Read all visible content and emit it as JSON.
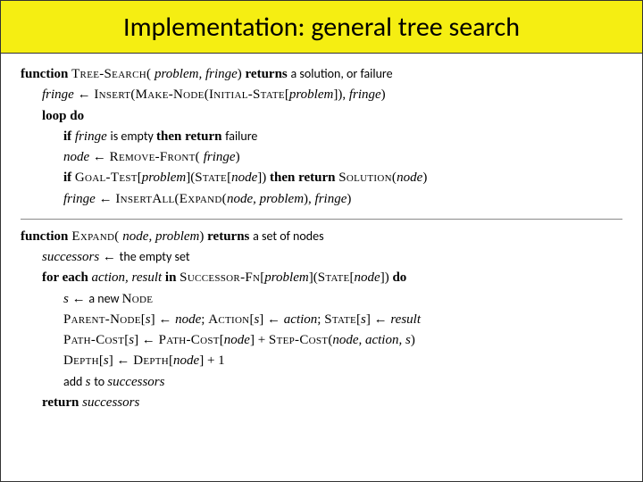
{
  "title": "Implementation: general tree search",
  "algo1": {
    "l1_kw_function": "function",
    "l1_name": "Tree-Search(",
    "l1_args": " problem, fringe",
    "l1_paren": ") ",
    "l1_kw_returns": "returns ",
    "l1_ret": "a solution, ",
    "l1_or_failure": "or failure",
    "l2_lhs": "fringe",
    "l2_arrow": " ← ",
    "l2_insert": "Insert(Make-Node(Initial-State",
    "l2_brk": "[",
    "l2_prob": "problem",
    "l2_close": "]), ",
    "l2_fringe2": "fringe",
    "l2_end": ")",
    "l3": "loop do",
    "l4_if": "if ",
    "l4_fringe": "fringe ",
    "l4_isempty": "is empty ",
    "l4_thenreturn": "then return ",
    "l4_failure": "failure",
    "l5_node": "node",
    "l5_arrow": " ← ",
    "l5_rf": "Remove-Front(",
    "l5_fringe": " fringe",
    "l5_close": ")",
    "l6_if": "if ",
    "l6_gt": "Goal-Test",
    "l6_b1": "[",
    "l6_prob": "problem",
    "l6_b2": "](",
    "l6_state": "State",
    "l6_b3": "[",
    "l6_node": "node",
    "l6_b4": "]) ",
    "l6_thenreturn": "then return ",
    "l6_sol": "Solution(",
    "l6_node2": "node",
    "l6_close": ")",
    "l7_fringe": "fringe",
    "l7_arrow": " ← ",
    "l7_ia": "InsertAll(Expand(",
    "l7_node": "node, problem",
    "l7_mid": "), ",
    "l7_fringe2": "fringe",
    "l7_close": ")"
  },
  "algo2": {
    "h_kw_function": "function",
    "h_name": " Expand(",
    "h_args": " node, problem",
    "h_paren": ") ",
    "h_kw_returns": "returns ",
    "h_ret": "a set of nodes",
    "l1_succ": "successors",
    "l1_arrow": " ← ",
    "l1_empty": "the empty set",
    "l2_for": "for each ",
    "l2_ar": "action, result ",
    "l2_in": "in ",
    "l2_sfn": "Successor-Fn",
    "l2_b1": "[",
    "l2_prob": "problem",
    "l2_b2": "](",
    "l2_state": "State",
    "l2_b3": "[",
    "l2_node": "node",
    "l2_b4": "]) ",
    "l2_do": "do",
    "l3_s": "s",
    "l3_arrow": " ← ",
    "l3_new": "a new ",
    "l3_node": "Node",
    "l4_pn": "Parent-Node",
    "l4_b1": "[",
    "l4_s": "s",
    "l4_b2": "] ← ",
    "l4_node": "node",
    "l4_sep": ";   ",
    "l4_act": "Action",
    "l4_b3": "[",
    "l4_s2": "s",
    "l4_b4": "] ← ",
    "l4_action": "action",
    "l4_sep2": ";   ",
    "l4_state": "State",
    "l4_b5": "[",
    "l4_s3": "s",
    "l4_b6": "] ← ",
    "l4_result": "result",
    "l5_pc": "Path-Cost",
    "l5_b1": "[",
    "l5_s": "s",
    "l5_b2": "] ← ",
    "l5_pc2": "Path-Cost",
    "l5_b3": "[",
    "l5_node": "node",
    "l5_b4": "] + ",
    "l5_stc": "Step-Cost",
    "l5_paren": "(",
    "l5_args": "node, action, s",
    "l5_close": ")",
    "l6_d": "Depth",
    "l6_b1": "[",
    "l6_s": "s",
    "l6_b2": "] ← ",
    "l6_d2": "Depth",
    "l6_b3": "[",
    "l6_node": "node",
    "l6_b4": "] + 1",
    "l7_add": "add ",
    "l7_s": "s ",
    "l7_to": "to ",
    "l7_succ": "successors",
    "l8_ret": "return ",
    "l8_succ": "successors"
  }
}
